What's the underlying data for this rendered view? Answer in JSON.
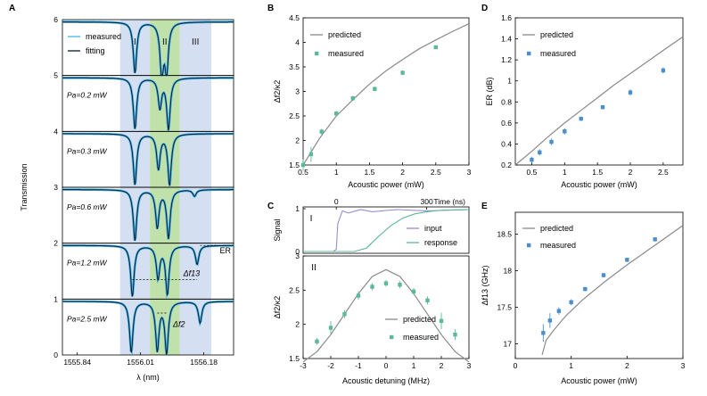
{
  "colors": {
    "measured_line": "#43b4e8",
    "fitting_line": "#0b1a2a",
    "predicted_line": "#8a8a8a",
    "measured_marker": "#5cb89c",
    "measured_marker_blue": "#4a8fcb",
    "input_line": "#9b8ad0",
    "response_line": "#5cb89c",
    "region_blue": "#cdd9f0",
    "region_green": "#b6dc9c",
    "axis": "#000000"
  },
  "chart_data": [
    {
      "panel": "A",
      "type": "line",
      "xlabel": "λ (nm)",
      "ylabel": "Transmission",
      "xlim": [
        1555.8,
        1556.26
      ],
      "xticks": [
        "1555.84",
        "1556.01",
        "1556.18"
      ],
      "ylim": [
        0,
        6
      ],
      "yticks": [
        "0",
        "1",
        "2",
        "3",
        "4",
        "5",
        "6"
      ],
      "regions": [
        {
          "label": "I",
          "start": 1555.955,
          "end": 1556.035
        },
        {
          "label": "II",
          "start": 1556.035,
          "end": 1556.115
        },
        {
          "label": "III",
          "start": 1556.115,
          "end": 1556.2
        }
      ],
      "legend": [
        "measured",
        "fitting"
      ],
      "traces": [
        {
          "label": "",
          "offset": 5,
          "dips": [
            [
              1555.995,
              0.95
            ],
            [
              1556.067,
              0.98
            ],
            [
              1556.08,
              0.9
            ]
          ]
        },
        {
          "label": "Pa=0.2 mW",
          "offset": 4,
          "dips": [
            [
              1555.995,
              0.95
            ],
            [
              1556.062,
              0.55
            ],
            [
              1556.085,
              0.95
            ]
          ]
        },
        {
          "label": "Pa=0.3 mW",
          "offset": 3,
          "dips": [
            [
              1555.995,
              0.95
            ],
            [
              1556.058,
              0.65
            ],
            [
              1556.088,
              0.95
            ]
          ]
        },
        {
          "label": "Pa=0.6 mW",
          "offset": 2,
          "dips": [
            [
              1555.995,
              0.95
            ],
            [
              1556.055,
              0.7
            ],
            [
              1556.085,
              0.9
            ],
            [
              1556.155,
              0.12
            ]
          ]
        },
        {
          "label": "Pa=1.2 mW",
          "offset": 1,
          "dips": [
            [
              1555.988,
              0.95
            ],
            [
              1556.057,
              0.6
            ],
            [
              1556.082,
              0.9
            ],
            [
              1556.162,
              0.35
            ]
          ]
        },
        {
          "label": "Pa=2.5 mW",
          "offset": 0,
          "dips": [
            [
              1555.985,
              0.95
            ],
            [
              1556.055,
              0.9
            ],
            [
              1556.08,
              0.95
            ],
            [
              1556.17,
              0.4
            ]
          ]
        }
      ],
      "annotations": [
        "ER",
        "Δf13",
        "Δf2"
      ]
    },
    {
      "panel": "B",
      "type": "scatter",
      "xlabel": "Acoustic power (mW)",
      "ylabel": "Δf2/κ2",
      "xlim": [
        0.5,
        3
      ],
      "ylim": [
        1.5,
        4.5
      ],
      "xticks": [
        "0.5",
        "1",
        "1.5",
        "2",
        "2.5",
        "3"
      ],
      "yticks": [
        "1.5",
        "2",
        "2.5",
        "3",
        "3.5",
        "4",
        "4.5"
      ],
      "series": [
        {
          "name": "predicted",
          "kind": "line",
          "x": [
            0.5,
            0.75,
            1.0,
            1.25,
            1.5,
            1.75,
            2.0,
            2.25,
            2.5,
            2.75,
            3.0
          ],
          "y": [
            1.5,
            2.05,
            2.5,
            2.83,
            3.15,
            3.42,
            3.65,
            3.87,
            4.05,
            4.22,
            4.38
          ]
        },
        {
          "name": "measured",
          "kind": "points",
          "x": [
            0.5,
            0.62,
            0.78,
            1.0,
            1.25,
            1.58,
            2.0,
            2.5
          ],
          "y": [
            1.5,
            1.72,
            2.18,
            2.55,
            2.86,
            3.05,
            3.38,
            3.9
          ],
          "err": [
            0.12,
            0.15,
            0.06,
            0.05,
            0.05,
            0.05,
            0.05,
            0.03
          ]
        }
      ]
    },
    {
      "panel": "C-I",
      "type": "line",
      "xlabel": "Time (ns)",
      "ylabel": "Signal",
      "xlim": [
        -110,
        440
      ],
      "ylim": [
        0,
        1
      ],
      "xticks": [
        "0",
        "300"
      ],
      "yticks": [
        "0",
        "1"
      ],
      "series": [
        {
          "name": "input",
          "x": [
            -110,
            -10,
            0,
            5,
            20,
            40,
            80,
            120,
            200,
            300,
            440
          ],
          "y": [
            0,
            0,
            0.05,
            0.65,
            0.95,
            0.9,
            0.98,
            0.93,
            0.98,
            0.95,
            0.98
          ]
        },
        {
          "name": "response",
          "x": [
            -110,
            60,
            100,
            140,
            180,
            220,
            260,
            300,
            340,
            380,
            440
          ],
          "y": [
            0,
            0,
            0.08,
            0.35,
            0.6,
            0.78,
            0.88,
            0.93,
            0.96,
            0.97,
            0.98
          ]
        }
      ]
    },
    {
      "panel": "C-II",
      "type": "scatter",
      "xlabel": "Acoustic detuning (MHz)",
      "ylabel": "Δf2/κ2",
      "xlim": [
        -3,
        3
      ],
      "ylim": [
        1.5,
        3
      ],
      "xticks": [
        "-3",
        "-2",
        "-1",
        "0",
        "1",
        "2",
        "3"
      ],
      "yticks": [
        "1.5",
        "2",
        "2.5",
        "3"
      ],
      "series": [
        {
          "name": "predicted",
          "kind": "line",
          "x": [
            -3.0,
            -2.5,
            -2.0,
            -1.5,
            -1.0,
            -0.5,
            0.0,
            0.5,
            1.0,
            1.5,
            2.0,
            2.5,
            3.0
          ],
          "y": [
            1.45,
            1.6,
            1.85,
            2.15,
            2.45,
            2.7,
            2.8,
            2.7,
            2.45,
            2.15,
            1.85,
            1.6,
            1.45
          ]
        },
        {
          "name": "measured",
          "kind": "points",
          "x": [
            -2.5,
            -2.0,
            -1.5,
            -1.0,
            -0.5,
            0.0,
            0.5,
            1.0,
            1.5,
            2.0,
            2.5
          ],
          "y": [
            1.75,
            1.95,
            2.15,
            2.42,
            2.55,
            2.6,
            2.58,
            2.48,
            2.35,
            2.05,
            1.85
          ],
          "err": [
            0.05,
            0.1,
            0.06,
            0.06,
            0.05,
            0.05,
            0.05,
            0.05,
            0.06,
            0.12,
            0.08
          ]
        }
      ]
    },
    {
      "panel": "D",
      "type": "scatter",
      "xlabel": "Acoustic power (mW)",
      "ylabel": "ER (dB)",
      "xlim": [
        0.25,
        2.8
      ],
      "ylim": [
        0.2,
        1.6
      ],
      "xticks": [
        "0.5",
        "1",
        "1.5",
        "2",
        "2.5"
      ],
      "yticks": [
        "0.2",
        "0.4",
        "0.6",
        "0.8",
        "1",
        "1.2",
        "1.4",
        "1.6"
      ],
      "series": [
        {
          "name": "predicted",
          "kind": "line",
          "x": [
            0.25,
            0.5,
            0.75,
            1.0,
            1.25,
            1.5,
            1.75,
            2.0,
            2.25,
            2.5,
            2.8
          ],
          "y": [
            0.2,
            0.33,
            0.47,
            0.6,
            0.72,
            0.84,
            0.96,
            1.07,
            1.18,
            1.29,
            1.42
          ]
        },
        {
          "name": "measured",
          "kind": "points",
          "x": [
            0.5,
            0.62,
            0.8,
            1.0,
            1.25,
            1.58,
            2.0,
            2.5
          ],
          "y": [
            0.25,
            0.32,
            0.42,
            0.52,
            0.64,
            0.75,
            0.89,
            1.1
          ],
          "err": [
            0.03,
            0.03,
            0.03,
            0.03,
            0.02,
            0.02,
            0.03,
            0.03
          ]
        }
      ]
    },
    {
      "panel": "E",
      "type": "scatter",
      "xlabel": "Acoustic power (mW)",
      "ylabel": "Δf13 (GHz)",
      "xlim": [
        0,
        3
      ],
      "ylim": [
        16.8,
        18.8
      ],
      "xticks": [
        "0",
        "1",
        "2",
        "3"
      ],
      "yticks": [
        "17",
        "17.5",
        "18",
        "18.5"
      ],
      "series": [
        {
          "name": "predicted",
          "kind": "line",
          "x": [
            0.48,
            0.55,
            0.7,
            0.9,
            1.2,
            1.6,
            2.0,
            2.5,
            3.0
          ],
          "y": [
            16.85,
            17.05,
            17.2,
            17.38,
            17.6,
            17.85,
            18.08,
            18.35,
            18.62
          ]
        },
        {
          "name": "measured",
          "kind": "points",
          "x": [
            0.5,
            0.62,
            0.78,
            1.0,
            1.25,
            1.58,
            2.0,
            2.5
          ],
          "y": [
            17.15,
            17.32,
            17.45,
            17.57,
            17.75,
            17.94,
            18.15,
            18.43
          ],
          "err": [
            0.12,
            0.1,
            0.05,
            0.04,
            0.03,
            0.03,
            0.03,
            0.03
          ]
        }
      ]
    }
  ]
}
